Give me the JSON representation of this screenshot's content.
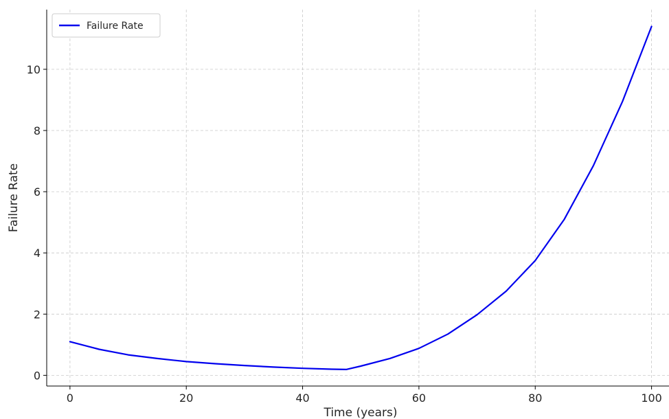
{
  "chart_data": {
    "type": "line",
    "title": "",
    "xlabel": "Time (years)",
    "ylabel": "Failure Rate",
    "xlim": [
      -4,
      103
    ],
    "ylim": [
      -0.35,
      11.95
    ],
    "xticks": [
      0,
      20,
      40,
      60,
      80,
      100
    ],
    "yticks": [
      0,
      2,
      4,
      6,
      8,
      10
    ],
    "xtick_labels": [
      "0",
      "20",
      "40",
      "60",
      "80",
      "100"
    ],
    "ytick_labels": [
      "0",
      "2",
      "4",
      "6",
      "8",
      "10"
    ],
    "grid": true,
    "legend": {
      "position": "top-left"
    },
    "series": [
      {
        "name": "Failure Rate",
        "color": "#0000ee",
        "x": [
          0,
          5,
          10,
          15,
          20,
          25,
          30,
          35,
          40,
          45,
          47.5,
          50,
          55,
          60,
          65,
          70,
          75,
          80,
          85,
          90,
          95,
          100
        ],
        "y": [
          1.1,
          0.85,
          0.67,
          0.55,
          0.45,
          0.38,
          0.32,
          0.27,
          0.23,
          0.2,
          0.19,
          0.3,
          0.55,
          0.88,
          1.35,
          1.98,
          2.75,
          3.75,
          5.1,
          6.85,
          8.95,
          11.4
        ]
      }
    ]
  }
}
